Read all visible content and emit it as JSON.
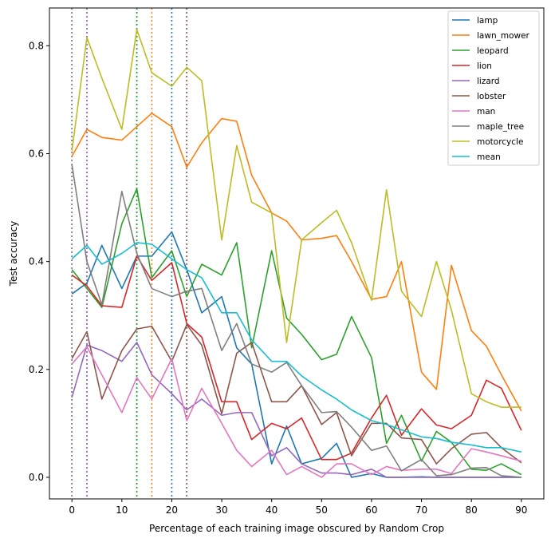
{
  "chart_data": {
    "type": "line",
    "title": "",
    "xlabel": "Percentage of each training image obscured by Random Crop",
    "ylabel": "Test accuracy",
    "xlim": [
      -4.5,
      94.5
    ],
    "ylim": [
      -0.04,
      0.87
    ],
    "xticks": [
      0,
      10,
      20,
      30,
      40,
      50,
      60,
      70,
      80,
      90
    ],
    "yticks": [
      0.0,
      0.2,
      0.4,
      0.6,
      0.8
    ],
    "ytick_labels": [
      "0.0",
      "0.2",
      "0.4",
      "0.6",
      "0.8"
    ],
    "grid": false,
    "legend_position": "upper right",
    "vlines": [
      {
        "x": 0,
        "color": "#8c564b"
      },
      {
        "x": 0,
        "color": "#7f7f7f"
      },
      {
        "x": 3,
        "color": "#e377c2"
      },
      {
        "x": 3,
        "color": "#9467bd"
      },
      {
        "x": 13,
        "color": "#17becf"
      },
      {
        "x": 13,
        "color": "#2ca02c"
      },
      {
        "x": 16,
        "color": "#ff7f0e"
      },
      {
        "x": 20,
        "color": "#1f77b4"
      },
      {
        "x": 23,
        "color": "#d62728"
      },
      {
        "x": 23,
        "color": "#8c564b"
      }
    ],
    "x": [
      0,
      3,
      6,
      10,
      13,
      16,
      20,
      23,
      26,
      30,
      33,
      36,
      40,
      43,
      46,
      50,
      53,
      56,
      60,
      63,
      66,
      70,
      73,
      76,
      80,
      83,
      86,
      90
    ],
    "series": [
      {
        "name": "lamp",
        "color": "#1f77b4",
        "values": [
          0.34,
          0.36,
          0.43,
          0.35,
          0.41,
          0.41,
          0.455,
          0.385,
          0.305,
          0.335,
          0.24,
          0.21,
          0.025,
          0.095,
          0.025,
          0.035,
          0.063,
          0.0,
          0.007,
          0.0,
          0.0,
          0.001,
          0.0,
          0.0,
          0.0,
          0.0,
          0.0,
          0.0
        ]
      },
      {
        "name": "lawn_mower",
        "color": "#ff7f0e",
        "values": [
          0.595,
          0.645,
          0.63,
          0.625,
          0.65,
          0.675,
          0.65,
          0.575,
          0.62,
          0.665,
          0.66,
          0.56,
          0.49,
          0.475,
          0.44,
          0.443,
          0.448,
          0.4,
          0.33,
          0.335,
          0.4,
          0.195,
          0.163,
          0.393,
          0.272,
          0.243,
          0.19,
          0.123
        ]
      },
      {
        "name": "leopard",
        "color": "#2ca02c",
        "values": [
          0.385,
          0.35,
          0.315,
          0.47,
          0.535,
          0.37,
          0.42,
          0.335,
          0.395,
          0.375,
          0.435,
          0.24,
          0.42,
          0.295,
          0.265,
          0.218,
          0.228,
          0.298,
          0.222,
          0.063,
          0.115,
          0.03,
          0.085,
          0.065,
          0.015,
          0.013,
          0.025,
          0.005
        ]
      },
      {
        "name": "lion",
        "color": "#d62728",
        "values": [
          0.375,
          0.355,
          0.318,
          0.315,
          0.41,
          0.365,
          0.398,
          0.285,
          0.26,
          0.14,
          0.14,
          0.07,
          0.1,
          0.09,
          0.11,
          0.033,
          0.033,
          0.045,
          0.11,
          0.152,
          0.078,
          0.127,
          0.097,
          0.09,
          0.115,
          0.18,
          0.165,
          0.087
        ]
      },
      {
        "name": "lizard",
        "color": "#9467bd",
        "values": [
          0.148,
          0.245,
          0.235,
          0.215,
          0.25,
          0.19,
          0.155,
          0.125,
          0.145,
          0.115,
          0.12,
          0.12,
          0.04,
          0.055,
          0.025,
          0.008,
          0.008,
          0.005,
          0.015,
          0.0,
          0.0,
          0.0,
          0.0,
          0.0,
          0.0,
          0.0,
          0.0,
          0.0
        ]
      },
      {
        "name": "lobster",
        "color": "#8c564b",
        "values": [
          0.22,
          0.27,
          0.145,
          0.235,
          0.275,
          0.28,
          0.215,
          0.283,
          0.245,
          0.118,
          0.23,
          0.25,
          0.14,
          0.14,
          0.17,
          0.098,
          0.12,
          0.04,
          0.1,
          0.1,
          0.073,
          0.07,
          0.025,
          0.053,
          0.08,
          0.083,
          0.055,
          0.027
        ]
      },
      {
        "name": "man",
        "color": "#e377c2",
        "values": [
          0.21,
          0.242,
          0.19,
          0.12,
          0.185,
          0.145,
          0.22,
          0.105,
          0.165,
          0.1,
          0.05,
          0.02,
          0.05,
          0.005,
          0.02,
          0.0,
          0.025,
          0.025,
          0.005,
          0.02,
          0.013,
          0.015,
          0.015,
          0.007,
          0.053,
          0.047,
          0.04,
          0.03
        ]
      },
      {
        "name": "maple_tree",
        "color": "#7f7f7f",
        "values": [
          0.58,
          0.4,
          0.32,
          0.53,
          0.415,
          0.35,
          0.335,
          0.345,
          0.35,
          0.235,
          0.285,
          0.21,
          0.195,
          0.213,
          0.17,
          0.12,
          0.122,
          0.093,
          0.05,
          0.058,
          0.012,
          0.033,
          0.003,
          0.005,
          0.017,
          0.018,
          0.003,
          0.0
        ]
      },
      {
        "name": "motorcycle",
        "color": "#bcbd22",
        "values": [
          0.605,
          0.815,
          0.74,
          0.645,
          0.83,
          0.75,
          0.725,
          0.76,
          0.735,
          0.44,
          0.615,
          0.51,
          0.49,
          0.25,
          0.44,
          0.472,
          0.495,
          0.435,
          0.328,
          0.533,
          0.345,
          0.298,
          0.4,
          0.31,
          0.155,
          0.14,
          0.13,
          0.13
        ]
      },
      {
        "name": "mean",
        "color": "#17becf",
        "values": [
          0.405,
          0.43,
          0.395,
          0.415,
          0.435,
          0.432,
          0.405,
          0.385,
          0.37,
          0.305,
          0.305,
          0.255,
          0.215,
          0.215,
          0.188,
          0.162,
          0.145,
          0.125,
          0.105,
          0.098,
          0.088,
          0.075,
          0.072,
          0.065,
          0.06,
          0.055,
          0.055,
          0.047
        ]
      }
    ]
  }
}
